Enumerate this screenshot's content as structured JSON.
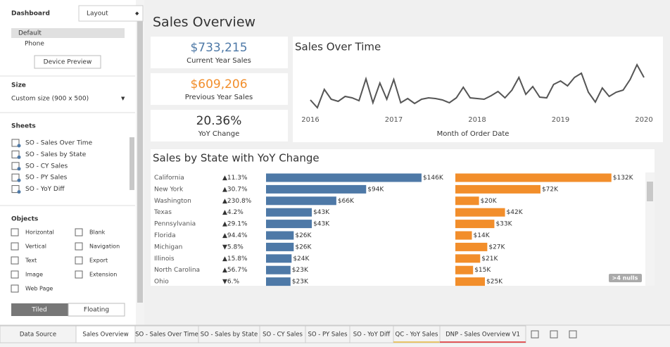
{
  "sidebar": {
    "tabs": [
      "Dashboard",
      "Layout"
    ],
    "devices": [
      "Default",
      "Phone"
    ],
    "device_button": "Device Preview",
    "size_title": "Size",
    "size_value": "Custom size (900 x 500)",
    "sheets_title": "Sheets",
    "sheets": [
      "SO - Sales Over Time",
      "SO - Sales by State",
      "SO - CY Sales",
      "SO - PY Sales",
      "SO - YoY Diff"
    ],
    "objects_title": "Objects",
    "objects": [
      "Horizontal",
      "Blank",
      "Vertical",
      "Navigation",
      "Text",
      "Export",
      "Image",
      "Extension",
      "Web Page"
    ],
    "layout_modes": [
      "Tiled",
      "Floating"
    ]
  },
  "dashboard": {
    "title": "Sales Overview",
    "kpis": [
      {
        "value": "$733,215",
        "label": "Current Year Sales",
        "color": "#4e79a7"
      },
      {
        "value": "$609,206",
        "label": "Previous Year Sales",
        "color": "#f28e2b"
      },
      {
        "value": "20.36%",
        "label": "YoY Change",
        "color": "#333333"
      }
    ],
    "line_chart": {
      "type": "line",
      "title": "Sales Over Time",
      "x_label": "Month of Order Date",
      "color": "#555555",
      "values": [
        28000,
        17000,
        43000,
        29000,
        26000,
        33000,
        31000,
        27000,
        58000,
        24000,
        52000,
        29000,
        57000,
        24000,
        30000,
        23000,
        29000,
        31000,
        30000,
        28000,
        24000,
        31000,
        46000,
        31000,
        30000,
        29000,
        34000,
        40000,
        31000,
        42000,
        60000,
        36000,
        47000,
        32000,
        31000,
        50000,
        55000,
        48000,
        60000,
        66000,
        39000,
        25000,
        45000,
        33000,
        39000,
        42000,
        57000,
        78000,
        60000
      ],
      "ylim": [
        10000,
        80000
      ],
      "xlim": [
        0,
        48
      ],
      "xticks": [
        {
          "value": 0,
          "label": "2016"
        },
        {
          "value": 12,
          "label": "2017"
        },
        {
          "value": 24,
          "label": "2018"
        },
        {
          "value": 36,
          "label": "2019"
        },
        {
          "value": 48,
          "label": "2020"
        }
      ]
    },
    "bar_chart": {
      "type": "bar",
      "title": "Sales by State with YoY Change",
      "categories": [
        "California",
        "New York",
        "Washington",
        "Texas",
        "Pennsylvania",
        "Florida",
        "Michigan",
        "Illinois",
        "North Carolina",
        "Ohio"
      ],
      "yoy": [
        "▲11.3%",
        "▲30.7%",
        "▲230.8%",
        "▲4.2%",
        "▲29.1%",
        "▲94.4%",
        "▼5.8%",
        "▲15.8%",
        "▲56.7%",
        "▼6.%"
      ],
      "xlim": [
        0,
        150000
      ],
      "series": [
        {
          "name": "Current Year Sales",
          "color": "#4e79a7",
          "values": [
            146000,
            94000,
            66000,
            43000,
            43000,
            26000,
            26000,
            24000,
            23000,
            23000
          ],
          "value_labels": [
            "$146K",
            "$94K",
            "$66K",
            "$43K",
            "$43K",
            "$26K",
            "$26K",
            "$24K",
            "$23K",
            "$23K"
          ]
        },
        {
          "name": "Previous Year Sales",
          "color": "#f28e2b",
          "values": [
            132000,
            72000,
            20000,
            42000,
            33000,
            14000,
            27000,
            21000,
            15000,
            25000
          ],
          "value_labels": [
            "$132K",
            "$72K",
            "$20K",
            "$42K",
            "$33K",
            "$14K",
            "$27K",
            "$21K",
            "$15K",
            "$25K"
          ]
        }
      ],
      "nulls_badge": ">4 nulls"
    }
  },
  "bottom_tabs": [
    "Data Source",
    "Sales Overview",
    "SO - Sales Over Time",
    "SO - Sales by State",
    "SO - CY Sales",
    "SO - PY Sales",
    "SO - YoY Diff",
    "QC - YoY Sales",
    "DNP - Sales Overview V1"
  ]
}
